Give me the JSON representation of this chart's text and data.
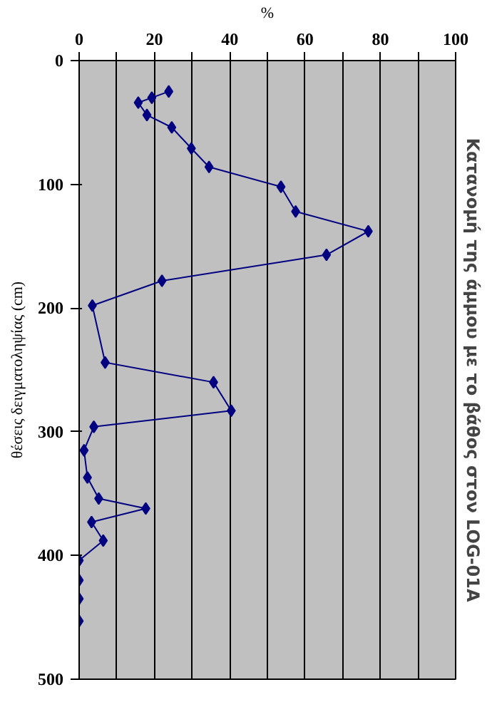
{
  "chart_data": {
    "type": "line",
    "title": "Κατανομή της άμμου με το βάθος στον LOG-01A",
    "xlabel": "%",
    "ylabel": "θέσεις δειγματοληψίας (cm)",
    "series": [
      {
        "color": "#000080",
        "x": [
          23.8,
          19.3,
          15.7,
          18,
          24.6,
          29.8,
          34.5,
          53.6,
          57.5,
          76.8,
          65.7,
          22,
          3.5,
          6.9,
          35.7,
          40.4,
          3.9,
          1.3,
          2.2,
          5.2,
          17.7,
          3.3,
          6.4,
          0,
          0,
          0,
          0
        ],
        "values": [
          25,
          30,
          34,
          44,
          54,
          71,
          86,
          102,
          122,
          138,
          157,
          178,
          198,
          244,
          260,
          283,
          296,
          315,
          337,
          354,
          362,
          373,
          388,
          404,
          420,
          435,
          453
        ]
      }
    ],
    "xlim": [
      0,
      100
    ],
    "xticks": [
      0,
      {
        "value": 10,
        "label": null
      },
      20,
      {
        "value": 30,
        "label": null
      },
      40,
      {
        "value": 50,
        "label": null
      },
      60,
      {
        "value": 70,
        "label": null
      },
      80,
      {
        "value": 90,
        "label": null
      },
      100
    ],
    "ylim": [
      500,
      0
    ],
    "yticks": [
      0,
      100,
      200,
      300,
      400,
      500
    ],
    "grid": "x",
    "marker": "diamond",
    "line_style": "solid"
  }
}
